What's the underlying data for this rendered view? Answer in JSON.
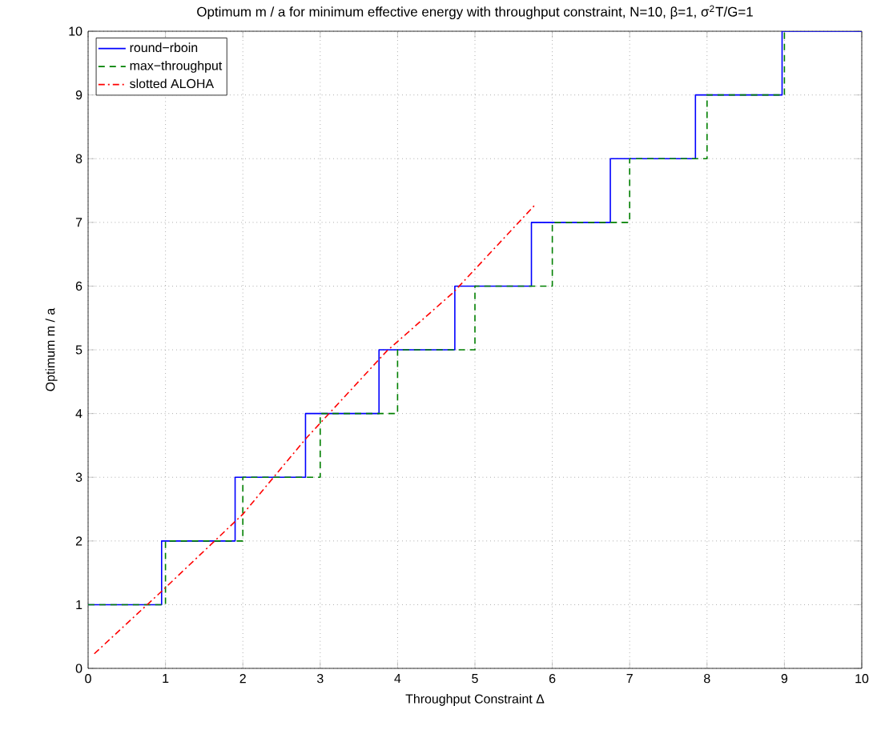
{
  "chart_data": {
    "type": "line",
    "title": "Optimum m / a for minimum effective energy with throughput constraint, N=10, β=1, σ$^{2}$T/G=1",
    "xlabel": "Throughput Constraint Δ",
    "ylabel": "Optimum m / a",
    "xlim": [
      0,
      10
    ],
    "ylim": [
      0,
      10
    ],
    "xticks": [
      0,
      1,
      2,
      3,
      4,
      5,
      6,
      7,
      8,
      9,
      10
    ],
    "yticks": [
      0,
      1,
      2,
      3,
      4,
      5,
      6,
      7,
      8,
      9,
      10
    ],
    "grid": true,
    "legend": "top left",
    "series": [
      {
        "name": "round−rboin",
        "type": "step",
        "color": "#0000ff",
        "line_style": "solid",
        "x": [
          0,
          0.95,
          1.9,
          2.81,
          3.76,
          4.74,
          5.73,
          6.75,
          7.85,
          8.97,
          10
        ],
        "values": [
          1,
          2,
          3,
          4,
          5,
          6,
          7,
          8,
          9,
          10,
          10
        ]
      },
      {
        "name": "max−throughput",
        "type": "step",
        "color": "#008000",
        "line_style": "dashed",
        "x": [
          0,
          1,
          2,
          3,
          4,
          5,
          6,
          7,
          8,
          9
        ],
        "values": [
          1,
          2,
          3,
          4,
          5,
          6,
          7,
          8,
          9,
          10
        ]
      },
      {
        "name": "slotted ALOHA",
        "color": "#ff0000",
        "line_style": "dashdot",
        "x": [
          0.08,
          0.95,
          2.0,
          2.81,
          3.86,
          4.72,
          5.78
        ],
        "values": [
          0.23,
          1.21,
          2.42,
          3.6,
          4.98,
          5.9,
          7.28
        ]
      }
    ]
  }
}
